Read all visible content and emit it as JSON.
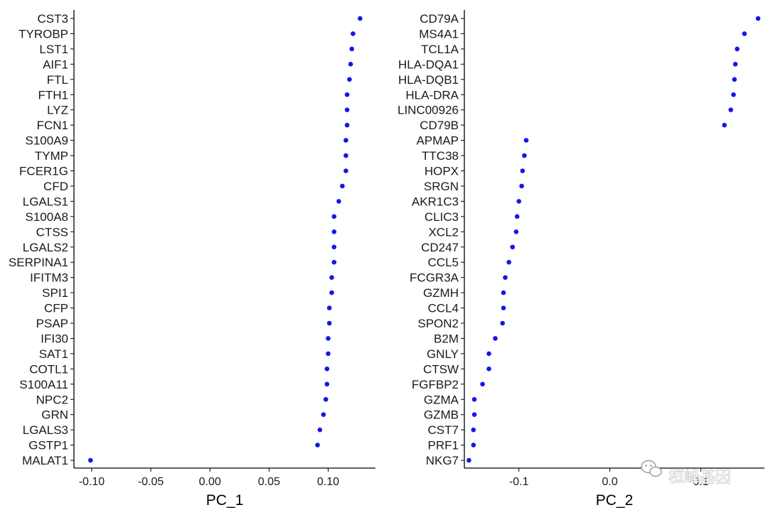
{
  "watermark": {
    "text": "桓峰基因"
  },
  "colors": {
    "point": "#1515ee",
    "axis": "#000000",
    "text": "#1a1a1a"
  },
  "chart_data": [
    {
      "type": "scatter",
      "xlabel": "PC_1",
      "ylabel": "",
      "xlim": [
        -0.115,
        0.14
      ],
      "xticks": [
        -0.1,
        -0.05,
        0.0,
        0.05,
        0.1
      ],
      "xtick_labels": [
        "-0.10",
        "-0.05",
        "0.00",
        "0.05",
        "0.10"
      ],
      "grid": false,
      "genes": [
        "CST3",
        "TYROBP",
        "LST1",
        "AIF1",
        "FTL",
        "FTH1",
        "LYZ",
        "FCN1",
        "S100A9",
        "TYMP",
        "FCER1G",
        "CFD",
        "LGALS1",
        "S100A8",
        "CTSS",
        "LGALS2",
        "SERPINA1",
        "IFITM3",
        "SPI1",
        "CFP",
        "PSAP",
        "IFI30",
        "SAT1",
        "COTL1",
        "S100A11",
        "NPC2",
        "GRN",
        "LGALS3",
        "GSTP1",
        "MALAT1"
      ],
      "values": [
        0.127,
        0.121,
        0.12,
        0.119,
        0.118,
        0.116,
        0.116,
        0.116,
        0.115,
        0.115,
        0.115,
        0.112,
        0.109,
        0.105,
        0.105,
        0.105,
        0.105,
        0.103,
        0.103,
        0.101,
        0.101,
        0.1,
        0.1,
        0.099,
        0.099,
        0.098,
        0.096,
        0.093,
        0.091,
        -0.101
      ]
    },
    {
      "type": "scatter",
      "xlabel": "PC_2",
      "ylabel": "",
      "xlim": [
        -0.16,
        0.17
      ],
      "xticks": [
        -0.1,
        0.0,
        0.1
      ],
      "xtick_labels": [
        "-0.1",
        "0.0",
        "0.1"
      ],
      "grid": false,
      "genes": [
        "CD79A",
        "MS4A1",
        "TCL1A",
        "HLA-DQA1",
        "HLA-DQB1",
        "HLA-DRA",
        "LINC00926",
        "CD79B",
        "APMAP",
        "TTC38",
        "HOPX",
        "SRGN",
        "AKR1C3",
        "CLIC3",
        "XCL2",
        "CD247",
        "CCL5",
        "FCGR3A",
        "GZMH",
        "CCL4",
        "SPON2",
        "B2M",
        "GNLY",
        "CTSW",
        "FGFBP2",
        "GZMA",
        "GZMB",
        "CST7",
        "PRF1",
        "NKG7"
      ],
      "values": [
        0.163,
        0.148,
        0.14,
        0.138,
        0.137,
        0.136,
        0.133,
        0.126,
        -0.092,
        -0.094,
        -0.096,
        -0.097,
        -0.1,
        -0.102,
        -0.103,
        -0.107,
        -0.111,
        -0.115,
        -0.117,
        -0.117,
        -0.118,
        -0.126,
        -0.133,
        -0.133,
        -0.14,
        -0.149,
        -0.149,
        -0.15,
        -0.15,
        -0.155
      ]
    }
  ]
}
